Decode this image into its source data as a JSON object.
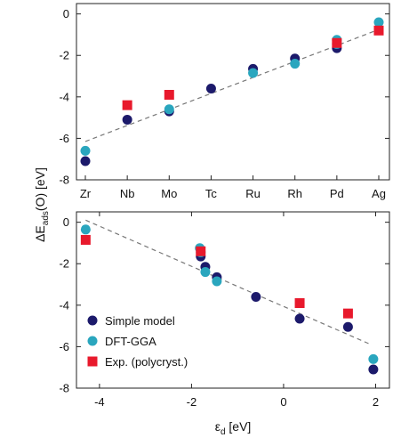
{
  "chart_data": [
    {
      "type": "scatter",
      "x_type": "category",
      "categories": [
        "Zr",
        "Nb",
        "Mo",
        "Tc",
        "Ru",
        "Rh",
        "Pd",
        "Ag"
      ],
      "ylim": [
        -8,
        0.5
      ],
      "yticks": [
        "0",
        "-2",
        "-4",
        "-6",
        "-8"
      ],
      "ytick_values": [
        0,
        -2,
        -4,
        -6,
        -8
      ],
      "fit_line": {
        "from": [
          0,
          -6.15
        ],
        "to": [
          7,
          -0.75
        ]
      },
      "series": [
        {
          "name": "Simple model",
          "color": "#1c1a6b",
          "marker": "circle",
          "points": [
            [
              0,
              -7.1
            ],
            [
              1,
              -5.1
            ],
            [
              2,
              -4.7
            ],
            [
              3,
              -3.6
            ],
            [
              4,
              -2.65
            ],
            [
              5,
              -2.15
            ],
            [
              6,
              -1.65
            ]
          ]
        },
        {
          "name": "DFT-GGA",
          "color": "#2aa6be",
          "marker": "circle",
          "points": [
            [
              0,
              -6.6
            ],
            [
              2,
              -4.6
            ],
            [
              4,
              -2.85
            ],
            [
              5,
              -2.4
            ],
            [
              6,
              -1.25
            ],
            [
              6,
              -1.45
            ],
            [
              7,
              -0.4
            ]
          ]
        },
        {
          "name": "Exp. (polycryst.)",
          "color": "#e8192c",
          "marker": "square",
          "points": [
            [
              1,
              -4.4
            ],
            [
              2,
              -3.9
            ],
            [
              6,
              -1.4
            ],
            [
              7,
              -0.8
            ]
          ]
        }
      ]
    },
    {
      "type": "scatter",
      "x_type": "numeric",
      "xlim": [
        -4.5,
        2.3
      ],
      "xticks": [
        "-4",
        "-2",
        "0",
        "2"
      ],
      "xtick_values": [
        -4,
        -2,
        0,
        2
      ],
      "ylim": [
        -8,
        0.5
      ],
      "yticks": [
        "0",
        "-2",
        "-4",
        "-6",
        "-8"
      ],
      "ytick_values": [
        0,
        -2,
        -4,
        -6,
        -8
      ],
      "fit_line": {
        "from": [
          -4.3,
          0.1
        ],
        "to": [
          1.9,
          -5.9
        ]
      },
      "series": [
        {
          "name": "Simple model",
          "color": "#1c1a6b",
          "marker": "circle",
          "points": [
            [
              -1.8,
              -1.65
            ],
            [
              -1.7,
              -2.15
            ],
            [
              -1.45,
              -2.65
            ],
            [
              -0.6,
              -3.6
            ],
            [
              0.35,
              -4.65
            ],
            [
              1.4,
              -5.05
            ],
            [
              1.95,
              -7.1
            ]
          ]
        },
        {
          "name": "DFT-GGA",
          "color": "#2aa6be",
          "marker": "circle",
          "points": [
            [
              -4.3,
              -0.35
            ],
            [
              -1.82,
              -1.25
            ],
            [
              -1.8,
              -1.45
            ],
            [
              -1.7,
              -2.4
            ],
            [
              -1.45,
              -2.85
            ],
            [
              1.95,
              -6.6
            ]
          ]
        },
        {
          "name": "Exp. (polycryst.)",
          "color": "#e8192c",
          "marker": "square",
          "points": [
            [
              -4.3,
              -0.85
            ],
            [
              -1.8,
              -1.4
            ],
            [
              0.35,
              -3.9
            ],
            [
              1.4,
              -4.4
            ]
          ]
        }
      ]
    }
  ],
  "ylabel_main": "ΔE",
  "ylabel_sub": "ads",
  "ylabel_rest": "(O) [eV]",
  "xlabel_main": "ε",
  "xlabel_sub": "d",
  "xlabel_rest": " [eV]",
  "legend": [
    "Simple model",
    "DFT-GGA",
    "Exp. (polycryst.)"
  ]
}
